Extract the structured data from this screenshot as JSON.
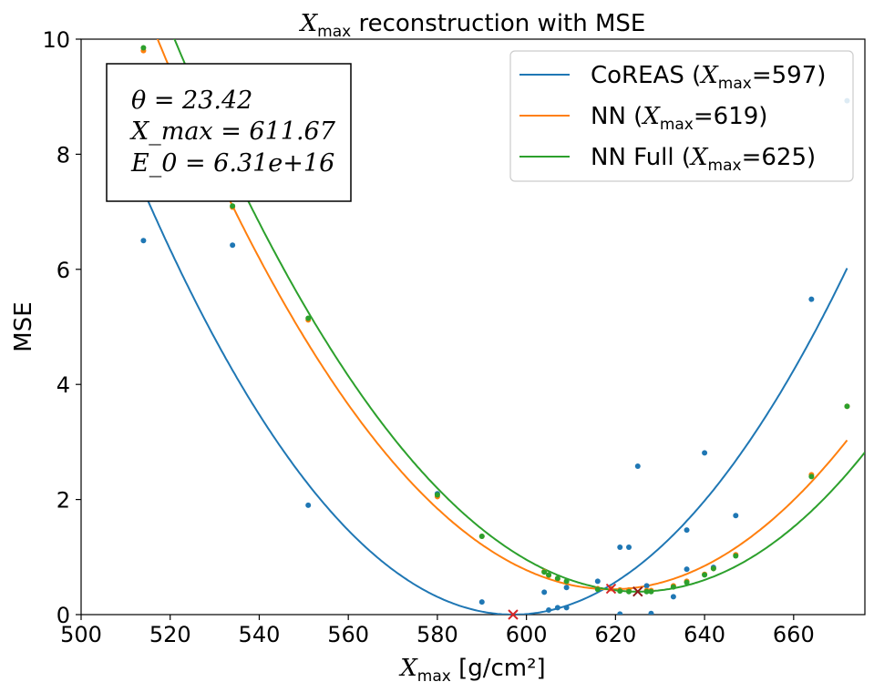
{
  "chart_data": {
    "type": "line",
    "title_main": "X",
    "title_sub": "max",
    "title_rest": " reconstruction with MSE",
    "xlabel_main": "X",
    "xlabel_sub": "max",
    "xlabel_rest": " [g/cm²]",
    "ylabel": "MSE",
    "xlim": [
      500,
      676
    ],
    "ylim": [
      0,
      10
    ],
    "xticks": [
      500,
      520,
      540,
      560,
      580,
      600,
      620,
      640,
      660
    ],
    "yticks": [
      0,
      2,
      4,
      6,
      8,
      10
    ],
    "grid": false,
    "legend_position": "top-right",
    "colors": {
      "coreas": "#1f77b4",
      "nn": "#ff7f0e",
      "nn_full": "#2ca02c",
      "marker": "#d62728"
    },
    "annotation": {
      "line1": "θ = 23.42",
      "line2": "X_max = 611.67",
      "line3": "E_0 = 6.31e+16"
    },
    "series": [
      {
        "key": "coreas",
        "name": "CoREAS (Xmax=597)",
        "legend_prefix": "CoREAS (",
        "legend_mid": "=597)",
        "color": "#1f77b4",
        "fit": {
          "a": 0.00107,
          "x0": 597,
          "c": 0.0
        },
        "fit_range": [
          509,
          672
        ],
        "minimum_x": 597,
        "points": [
          {
            "x": 514,
            "y": 6.5
          },
          {
            "x": 534,
            "y": 6.42
          },
          {
            "x": 551,
            "y": 1.9
          },
          {
            "x": 580,
            "y": 2.1
          },
          {
            "x": 590,
            "y": 0.22
          },
          {
            "x": 604,
            "y": 0.39
          },
          {
            "x": 605,
            "y": 0.08
          },
          {
            "x": 607,
            "y": 0.12
          },
          {
            "x": 609,
            "y": 0.12
          },
          {
            "x": 609,
            "y": 0.47
          },
          {
            "x": 616,
            "y": 0.58
          },
          {
            "x": 621,
            "y": 1.17
          },
          {
            "x": 621,
            "y": 0.01
          },
          {
            "x": 623,
            "y": 1.17
          },
          {
            "x": 625,
            "y": 2.58
          },
          {
            "x": 627,
            "y": 0.5
          },
          {
            "x": 628,
            "y": 0.02
          },
          {
            "x": 633,
            "y": 0.31
          },
          {
            "x": 636,
            "y": 0.79
          },
          {
            "x": 636,
            "y": 1.47
          },
          {
            "x": 640,
            "y": 2.81
          },
          {
            "x": 642,
            "y": 0.82
          },
          {
            "x": 647,
            "y": 1.72
          },
          {
            "x": 664,
            "y": 5.48
          },
          {
            "x": 672,
            "y": 8.93
          }
        ]
      },
      {
        "key": "nn",
        "name": "NN (Xmax=619)",
        "legend_prefix": "NN (",
        "legend_mid": "=619)",
        "color": "#ff7f0e",
        "fit": {
          "a": 0.000922,
          "x0": 619,
          "c": 0.44
        },
        "fit_range": [
          509,
          672
        ],
        "minimum_x": 619,
        "points": [
          {
            "x": 514,
            "y": 9.8
          },
          {
            "x": 534,
            "y": 7.08
          },
          {
            "x": 551,
            "y": 5.12
          },
          {
            "x": 580,
            "y": 2.05
          },
          {
            "x": 590,
            "y": 1.36
          },
          {
            "x": 604,
            "y": 0.75
          },
          {
            "x": 605,
            "y": 0.68
          },
          {
            "x": 607,
            "y": 0.62
          },
          {
            "x": 609,
            "y": 0.57
          },
          {
            "x": 616,
            "y": 0.45
          },
          {
            "x": 619,
            "y": 0.45
          },
          {
            "x": 621,
            "y": 0.43
          },
          {
            "x": 623,
            "y": 0.43
          },
          {
            "x": 627,
            "y": 0.42
          },
          {
            "x": 628,
            "y": 0.42
          },
          {
            "x": 633,
            "y": 0.5
          },
          {
            "x": 636,
            "y": 0.58
          },
          {
            "x": 640,
            "y": 0.7
          },
          {
            "x": 642,
            "y": 0.8
          },
          {
            "x": 647,
            "y": 1.04
          },
          {
            "x": 664,
            "y": 2.43
          },
          {
            "x": 672,
            "y": 3.62
          }
        ]
      },
      {
        "key": "nn_full",
        "name": "NN Full (Xmax=625)",
        "legend_prefix": "NN Full (",
        "legend_mid": "=625)",
        "color": "#2ca02c",
        "fit": {
          "a": 0.000887,
          "x0": 625,
          "c": 0.4,
          "cubic": 8.5e-06
        },
        "fit_range": [
          509,
          676
        ],
        "minimum_x": 625,
        "points": [
          {
            "x": 514,
            "y": 9.85
          },
          {
            "x": 534,
            "y": 7.1
          },
          {
            "x": 551,
            "y": 5.15
          },
          {
            "x": 580,
            "y": 2.08
          },
          {
            "x": 590,
            "y": 1.36
          },
          {
            "x": 604,
            "y": 0.74
          },
          {
            "x": 605,
            "y": 0.69
          },
          {
            "x": 607,
            "y": 0.63
          },
          {
            "x": 609,
            "y": 0.58
          },
          {
            "x": 616,
            "y": 0.44
          },
          {
            "x": 621,
            "y": 0.41
          },
          {
            "x": 623,
            "y": 0.4
          },
          {
            "x": 627,
            "y": 0.4
          },
          {
            "x": 628,
            "y": 0.4
          },
          {
            "x": 633,
            "y": 0.48
          },
          {
            "x": 636,
            "y": 0.56
          },
          {
            "x": 640,
            "y": 0.69
          },
          {
            "x": 642,
            "y": 0.8
          },
          {
            "x": 647,
            "y": 1.02
          },
          {
            "x": 664,
            "y": 2.4
          },
          {
            "x": 672,
            "y": 3.62
          }
        ]
      }
    ],
    "minimum_markers": [
      {
        "x": 597,
        "y": 0.0,
        "color": "#d62728"
      },
      {
        "x": 619,
        "y": 0.45,
        "color": "#d62728"
      },
      {
        "x": 625,
        "y": 0.4,
        "color": "#8c1a1a"
      }
    ]
  }
}
